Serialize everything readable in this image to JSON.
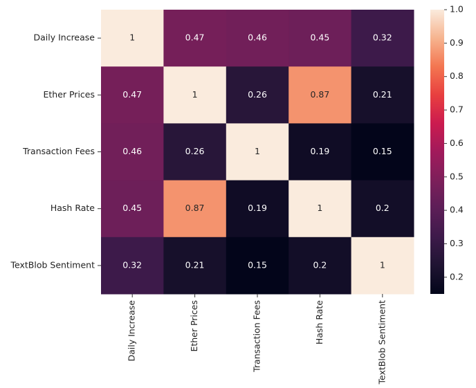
{
  "chart_data": {
    "type": "heatmap",
    "x_categories": [
      "Daily Increase",
      "Ether Prices",
      "Transaction Fees",
      "Hash Rate",
      "TextBlob Sentiment"
    ],
    "y_categories": [
      "Daily Increase",
      "Ether Prices",
      "Transaction Fees",
      "Hash Rate",
      "TextBlob Sentiment"
    ],
    "values": [
      [
        1,
        0.47,
        0.46,
        0.45,
        0.32
      ],
      [
        0.47,
        1,
        0.26,
        0.87,
        0.21
      ],
      [
        0.46,
        0.26,
        1,
        0.19,
        0.15
      ],
      [
        0.45,
        0.87,
        0.19,
        1,
        0.2
      ],
      [
        0.32,
        0.21,
        0.15,
        0.2,
        1
      ]
    ],
    "colormap": "rocket",
    "clim": [
      0.15,
      1
    ],
    "cticks": [
      0.2,
      0.3,
      0.4,
      0.5,
      0.6,
      0.7,
      0.8,
      0.9,
      {
        "value": 1,
        "label": "1.0"
      }
    ]
  }
}
